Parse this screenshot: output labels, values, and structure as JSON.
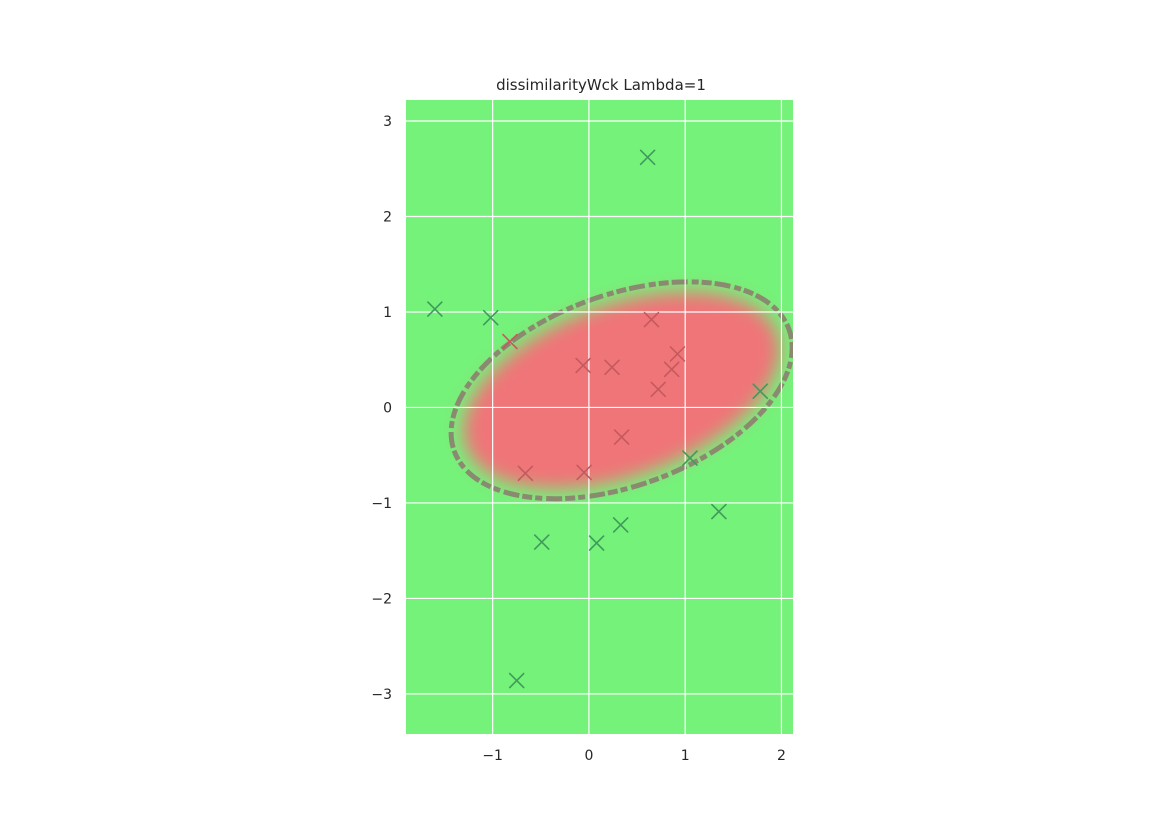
{
  "chart_data": {
    "type": "scatter",
    "title": "dissimilarityWck Lambda=1",
    "xlabel": "",
    "ylabel": "",
    "xlim": [
      -1.9,
      2.12
    ],
    "ylim": [
      -3.42,
      3.22
    ],
    "x_ticks": [
      -1,
      0,
      1,
      2
    ],
    "y_ticks": [
      -3,
      -2,
      -1,
      0,
      1,
      2,
      3
    ],
    "x_tick_labels": [
      "−1",
      "0",
      "1",
      "2"
    ],
    "y_tick_labels": [
      "−3",
      "−2",
      "−1",
      "0",
      "1",
      "2",
      "3"
    ],
    "grid": true,
    "legend": "none",
    "background_color": "#75f27a",
    "region_color": "#f07478",
    "boundary_color": "#8a8a70",
    "marker": "x",
    "region": {
      "center": [
        0.34,
        0.18
      ],
      "semi_axis_major": 1.85,
      "semi_axis_minor": 1.0,
      "angle_deg": 20
    },
    "series": [
      {
        "color": "#3f9a5c",
        "points": [
          [
            0.61,
            2.62
          ],
          [
            -1.6,
            1.03
          ],
          [
            -1.02,
            0.94
          ],
          [
            1.78,
            0.17
          ],
          [
            1.05,
            -0.53
          ],
          [
            1.35,
            -1.09
          ],
          [
            -0.49,
            -1.41
          ],
          [
            0.08,
            -1.42
          ],
          [
            0.33,
            -1.23
          ],
          [
            -0.75,
            -2.86
          ]
        ]
      },
      {
        "color": "#c45a5e",
        "points": [
          [
            0.65,
            0.92
          ],
          [
            -0.82,
            0.69
          ],
          [
            0.92,
            0.56
          ],
          [
            -0.06,
            0.44
          ],
          [
            0.24,
            0.42
          ],
          [
            0.86,
            0.4
          ],
          [
            0.72,
            0.19
          ],
          [
            0.34,
            -0.31
          ],
          [
            -0.66,
            -0.69
          ],
          [
            -0.05,
            -0.68
          ]
        ]
      }
    ]
  }
}
